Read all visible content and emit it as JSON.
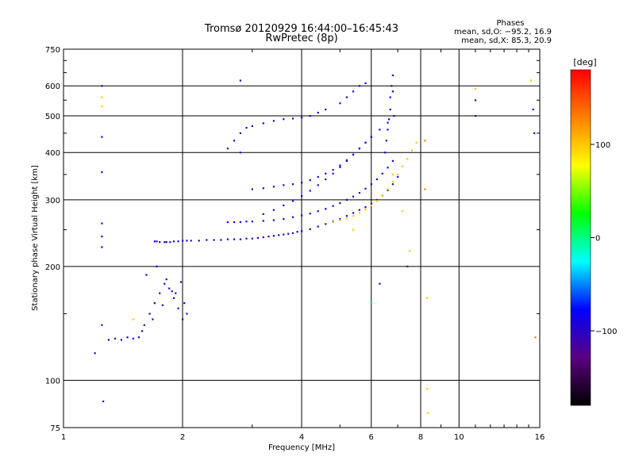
{
  "chart_data": {
    "type": "scatter",
    "title": "Tromsø 20120929 16:44:00–16:45:43",
    "subtitle": "RwPretec (8p)",
    "xlabel": "Frequency [MHz]",
    "ylabel": "Stationary phase Virtual Height [km]",
    "xscale": "log",
    "yscale": "log",
    "xlim": [
      1,
      16
    ],
    "ylim": [
      75,
      750
    ],
    "grid": true,
    "x_ticks": [
      1,
      2,
      4,
      6,
      8,
      10,
      16
    ],
    "x_tick_labels": [
      "1",
      "2",
      "4",
      "6",
      "8",
      "10",
      "16"
    ],
    "y_ticks": [
      75,
      100,
      200,
      300,
      400,
      500,
      600,
      750
    ],
    "y_tick_labels": [
      "75",
      "100",
      "200",
      "300",
      "400",
      "500",
      "600",
      "750"
    ],
    "info": {
      "heading": "Phases",
      "line_o": "mean, sd,O: −95.2, 16.9",
      "line_x": "mean, sd,X:  85.3, 20.9"
    },
    "colorbar": {
      "label": "[deg]",
      "range": [
        -180,
        180
      ],
      "ticks": [
        100,
        0,
        -100
      ],
      "tick_labels": [
        "100",
        "0",
        "−100"
      ],
      "colormap": "rainbow",
      "stops": [
        "#000000",
        "#5a0080",
        "#0000ff",
        "#00ffff",
        "#00ff00",
        "#ffff00",
        "#ff8000",
        "#ff0000"
      ]
    },
    "series": [
      {
        "x": [
          1.7,
          1.72,
          1.75,
          1.8,
          1.82,
          1.86,
          1.9,
          1.95,
          2.0,
          2.05,
          2.1,
          2.2,
          2.3,
          2.4,
          2.5,
          2.6,
          2.7,
          2.8,
          2.9,
          3.0,
          3.1,
          3.2,
          3.3,
          3.4,
          3.5,
          3.6,
          3.7,
          3.8,
          3.9,
          4.0,
          4.2,
          4.4,
          4.6,
          4.8,
          5.0,
          5.2,
          5.4,
          5.6,
          5.8,
          6.0,
          6.2,
          6.4,
          6.6,
          6.8,
          7.0
        ],
        "y": [
          233,
          233,
          232,
          232,
          232,
          232,
          233,
          233,
          234,
          234,
          234,
          234,
          235,
          235,
          235,
          236,
          236,
          236,
          237,
          237,
          238,
          239,
          240,
          241,
          242,
          243,
          244,
          245,
          247,
          248,
          251,
          255,
          259,
          263,
          267,
          272,
          277,
          282,
          287,
          293,
          300,
          308,
          318,
          330,
          345
        ],
        "phase": [
          -100,
          -100,
          -100,
          -100,
          -100,
          -100,
          -100,
          -100,
          -100,
          -100,
          -100,
          -100,
          -100,
          -100,
          -100,
          -100,
          -100,
          -100,
          -100,
          -100,
          -100,
          -100,
          -100,
          -100,
          -100,
          -100,
          -100,
          -100,
          -100,
          -100,
          -100,
          -100,
          -100,
          -100,
          -100,
          -100,
          -100,
          -100,
          -100,
          -100,
          -100,
          -100,
          -100,
          -100,
          -100
        ]
      },
      {
        "x": [
          2.6,
          2.7,
          2.8,
          2.9,
          3.0,
          3.2,
          3.4,
          3.6,
          3.8,
          4.0,
          4.2,
          4.4,
          4.6,
          4.8,
          5.0,
          5.2,
          5.4,
          5.6,
          5.8,
          6.0,
          6.2,
          6.4,
          6.6,
          6.8
        ],
        "y": [
          262,
          262,
          262,
          263,
          263,
          264,
          265,
          267,
          270,
          273,
          276,
          280,
          284,
          289,
          294,
          300,
          306,
          313,
          321,
          330,
          340,
          352,
          365,
          380
        ],
        "phase": [
          -100,
          -100,
          -100,
          -100,
          -100,
          -100,
          -100,
          -100,
          -100,
          -100,
          -100,
          -100,
          -100,
          -100,
          -100,
          -100,
          -100,
          -100,
          -100,
          -100,
          -100,
          -100,
          -100,
          -100
        ]
      },
      {
        "x": [
          3.2,
          3.4,
          3.6,
          3.8,
          4.0,
          4.2,
          4.4,
          4.6,
          4.8,
          5.0,
          5.2,
          5.4,
          5.6,
          5.8,
          6.0
        ],
        "y": [
          275,
          282,
          290,
          298,
          307,
          317,
          328,
          340,
          352,
          366,
          380,
          395,
          410,
          425,
          440
        ],
        "phase": [
          -100,
          -100,
          -100,
          -100,
          -100,
          -100,
          -100,
          -100,
          -100,
          -100,
          -100,
          -100,
          -100,
          -100,
          -100
        ]
      },
      {
        "x": [
          3.0,
          3.2,
          3.4,
          3.6,
          3.8,
          4.0,
          4.2,
          4.4,
          4.6,
          4.8,
          5.0,
          5.2,
          5.4,
          5.6,
          5.8,
          6.0,
          6.3,
          6.6
        ],
        "y": [
          320,
          322,
          325,
          328,
          330,
          333,
          338,
          345,
          352,
          360,
          370,
          382,
          395,
          410,
          425,
          440,
          460,
          480
        ],
        "phase": [
          -100,
          -100,
          -100,
          -100,
          -100,
          -100,
          -100,
          -100,
          -100,
          -100,
          -100,
          -100,
          -100,
          -100,
          -100,
          -100,
          -100,
          -100
        ]
      },
      {
        "x": [
          4.8,
          5.0,
          5.2,
          5.4,
          5.6,
          5.8,
          6.0,
          6.2,
          6.4,
          6.6,
          6.8,
          7.0,
          7.2,
          7.4,
          7.6,
          7.8
        ],
        "y": [
          262,
          265,
          268,
          272,
          277,
          283,
          290,
          298,
          308,
          320,
          335,
          350,
          368,
          385,
          405,
          425
        ],
        "phase": [
          100,
          100,
          100,
          100,
          100,
          100,
          100,
          100,
          100,
          100,
          100,
          100,
          100,
          100,
          100,
          100
        ]
      },
      {
        "x": [
          2.6,
          2.7,
          2.8,
          2.9,
          3.0,
          3.2,
          3.4,
          3.6,
          3.8,
          4.0,
          4.2,
          4.4,
          4.6
        ],
        "y": [
          410,
          430,
          450,
          465,
          470,
          478,
          485,
          490,
          492,
          495,
          500,
          510,
          520
        ],
        "phase": [
          -100,
          -100,
          -100,
          -100,
          -100,
          -100,
          -100,
          -100,
          -100,
          -100,
          -100,
          -100,
          -100
        ]
      },
      {
        "x": [
          5.0,
          5.2,
          5.4,
          5.6,
          5.8
        ],
        "y": [
          540,
          560,
          580,
          600,
          610
        ],
        "phase": [
          -100,
          -100,
          -100,
          -100,
          -100
        ]
      },
      {
        "x": [
          6.5,
          6.55,
          6.6,
          6.65,
          6.7,
          6.7,
          6.75,
          6.8,
          6.8,
          6.85
        ],
        "y": [
          400,
          430,
          460,
          490,
          520,
          560,
          600,
          640,
          580,
          500
        ],
        "phase": [
          -100,
          -100,
          -100,
          -100,
          -100,
          -100,
          -100,
          -100,
          -100,
          -100
        ]
      },
      {
        "x": [
          1.55,
          1.6,
          1.65,
          1.7,
          1.75,
          1.8,
          1.85,
          1.9,
          1.95,
          2.0,
          2.05,
          1.62,
          1.72,
          1.82,
          1.92,
          2.02,
          1.58,
          1.68,
          1.78,
          1.88,
          1.98
        ],
        "y": [
          130,
          140,
          150,
          160,
          170,
          180,
          175,
          165,
          155,
          145,
          150,
          190,
          200,
          185,
          170,
          160,
          135,
          145,
          158,
          172,
          182
        ],
        "phase": [
          -100,
          -100,
          -100,
          -100,
          -100,
          -100,
          -100,
          -100,
          -100,
          -100,
          -100,
          -100,
          -100,
          -100,
          -100,
          -100,
          -100,
          -100,
          -100,
          -100,
          -100
        ]
      },
      {
        "x": [
          1.3,
          1.35,
          1.4,
          1.45,
          1.5
        ],
        "y": [
          128,
          129,
          128,
          130,
          129
        ],
        "phase": [
          -100,
          -100,
          -100,
          -100,
          -100
        ]
      },
      {
        "x": [
          1.25,
          1.25,
          1.25,
          1.25,
          1.25,
          1.25,
          1.25,
          1.25,
          1.2,
          1.25,
          1.26,
          1.5,
          11.0,
          11.0,
          11.0,
          15.2,
          15.4,
          15.5,
          15.6,
          8.3,
          8.3,
          8.35,
          8.2,
          8.2,
          7.5,
          7.4,
          7.2,
          6.8,
          6.3,
          6.0,
          5.4,
          2.8,
          2.8
        ],
        "y": [
          600,
          560,
          530,
          440,
          355,
          260,
          240,
          225,
          118,
          140,
          88,
          145,
          590,
          550,
          500,
          620,
          520,
          450,
          130,
          165,
          95,
          82,
          320,
          430,
          220,
          200,
          280,
          350,
          180,
          160,
          250,
          400,
          620
        ],
        "phase": [
          -100,
          100,
          100,
          -100,
          -100,
          -100,
          -100,
          -100,
          -100,
          -100,
          -100,
          100,
          100,
          -100,
          -100,
          100,
          -100,
          -100,
          130,
          100,
          100,
          100,
          130,
          130,
          100,
          -100,
          100,
          100,
          -100,
          20,
          100,
          -100,
          -100
        ]
      }
    ]
  }
}
